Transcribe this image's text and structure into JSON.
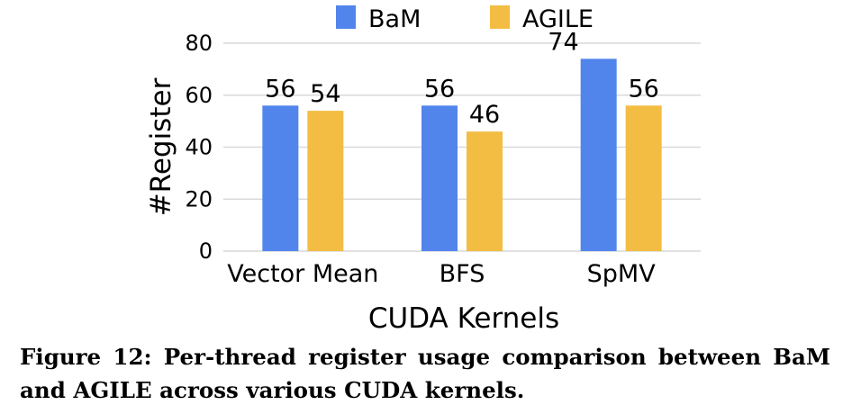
{
  "chart_data": {
    "type": "bar",
    "categories": [
      "Vector Mean",
      "BFS",
      "SpMV"
    ],
    "series": [
      {
        "name": "BaM",
        "values": [
          56,
          56,
          74
        ],
        "color": "#5285ec"
      },
      {
        "name": "AGILE",
        "values": [
          54,
          46,
          56
        ],
        "color": "#f2bd42"
      }
    ],
    "xlabel": "CUDA Kernels",
    "ylabel": "#Register",
    "ylim": [
      0,
      80
    ],
    "yticks": [
      0,
      20,
      40,
      60,
      80
    ],
    "grid": true,
    "legend": "top-center"
  },
  "caption": "Figure 12: Per-thread register usage comparison between BaM and AGILE across various CUDA kernels."
}
